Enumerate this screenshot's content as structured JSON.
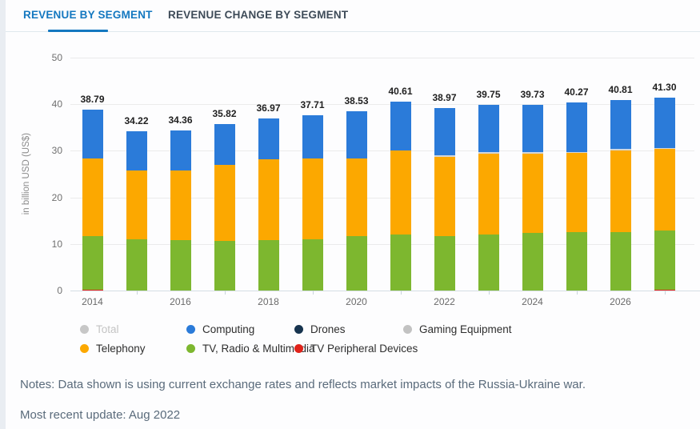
{
  "tabs": [
    {
      "label": "REVENUE BY SEGMENT",
      "active": true
    },
    {
      "label": "REVENUE CHANGE BY SEGMENT",
      "active": false
    }
  ],
  "accent_color": "#1478c0",
  "chart_data": {
    "type": "bar",
    "stacked": true,
    "stack_order": "bottom-to-top",
    "title": "",
    "xlabel": "",
    "ylabel": "in billion USD (US$)",
    "ylim": [
      0,
      50
    ],
    "yticks": [
      0,
      10,
      20,
      30,
      40,
      50
    ],
    "grid": true,
    "x": [
      2014,
      2015,
      2016,
      2017,
      2018,
      2019,
      2020,
      2021,
      2022,
      2023,
      2024,
      2025,
      2026,
      2027
    ],
    "x_labeled_years": [
      2014,
      2016,
      2018,
      2020,
      2022,
      2024,
      2026
    ],
    "totals": [
      "38.79",
      "34.22",
      "34.36",
      "35.82",
      "36.97",
      "37.71",
      "38.53",
      "40.61",
      "38.97",
      "39.75",
      "39.73",
      "40.27",
      "40.81",
      "41.30"
    ],
    "series": [
      {
        "name": "TV Peripheral Devices",
        "color": "#e0231a",
        "values": [
          0.15,
          0,
          0,
          0,
          0,
          0,
          0,
          0,
          0,
          0,
          0,
          0,
          0,
          0.2
        ]
      },
      {
        "name": "TV, Radio & Multimedia",
        "color": "#7db72f",
        "values": [
          11.35,
          11.0,
          10.9,
          10.7,
          10.9,
          11.0,
          11.7,
          12.1,
          11.7,
          12.0,
          12.3,
          12.5,
          12.6,
          12.6
        ]
      },
      {
        "name": "Telephony",
        "color": "#fca800",
        "values": [
          16.8,
          14.8,
          14.9,
          16.3,
          17.2,
          17.4,
          16.6,
          17.9,
          17.0,
          17.4,
          17.1,
          17.0,
          17.5,
          17.5
        ]
      },
      {
        "name": "Gaming Equipment",
        "color": "#d2d6da",
        "values": [
          0,
          0,
          0,
          0,
          0,
          0,
          0,
          0,
          0.1,
          0.12,
          0.12,
          0.15,
          0.15,
          0.15
        ]
      },
      {
        "name": "Computing",
        "color": "#2b7bd9",
        "values": [
          10.49,
          8.42,
          8.56,
          8.82,
          8.87,
          9.31,
          10.23,
          10.61,
          10.17,
          10.23,
          10.21,
          10.62,
          10.56,
          10.85
        ]
      }
    ],
    "legend_position": "bottom"
  },
  "legend": {
    "items": [
      {
        "label": "Total",
        "color": "#c7c7c7",
        "muted": true,
        "col": 0,
        "row": 0
      },
      {
        "label": "Computing",
        "color": "#2b7bd9",
        "muted": false,
        "col": 1,
        "row": 0
      },
      {
        "label": "Drones",
        "color": "#17344f",
        "muted": false,
        "col": 2,
        "row": 0
      },
      {
        "label": "Gaming Equipment",
        "color": "#c2c2c2",
        "muted": false,
        "col": 3,
        "row": 0
      },
      {
        "label": "Telephony",
        "color": "#fca800",
        "muted": false,
        "col": 0,
        "row": 1
      },
      {
        "label": "TV, Radio & Multimedia",
        "color": "#7db72f",
        "muted": false,
        "col": 1,
        "row": 1
      },
      {
        "label": "TV Peripheral Devices",
        "color": "#e0231a",
        "muted": false,
        "col": 2,
        "row": 1
      }
    ]
  },
  "notes": {
    "text": "Notes: Data shown is using current exchange rates and reflects market impacts of the Russia-Ukraine war."
  },
  "update": {
    "text": "Most recent update: Aug 2022"
  }
}
